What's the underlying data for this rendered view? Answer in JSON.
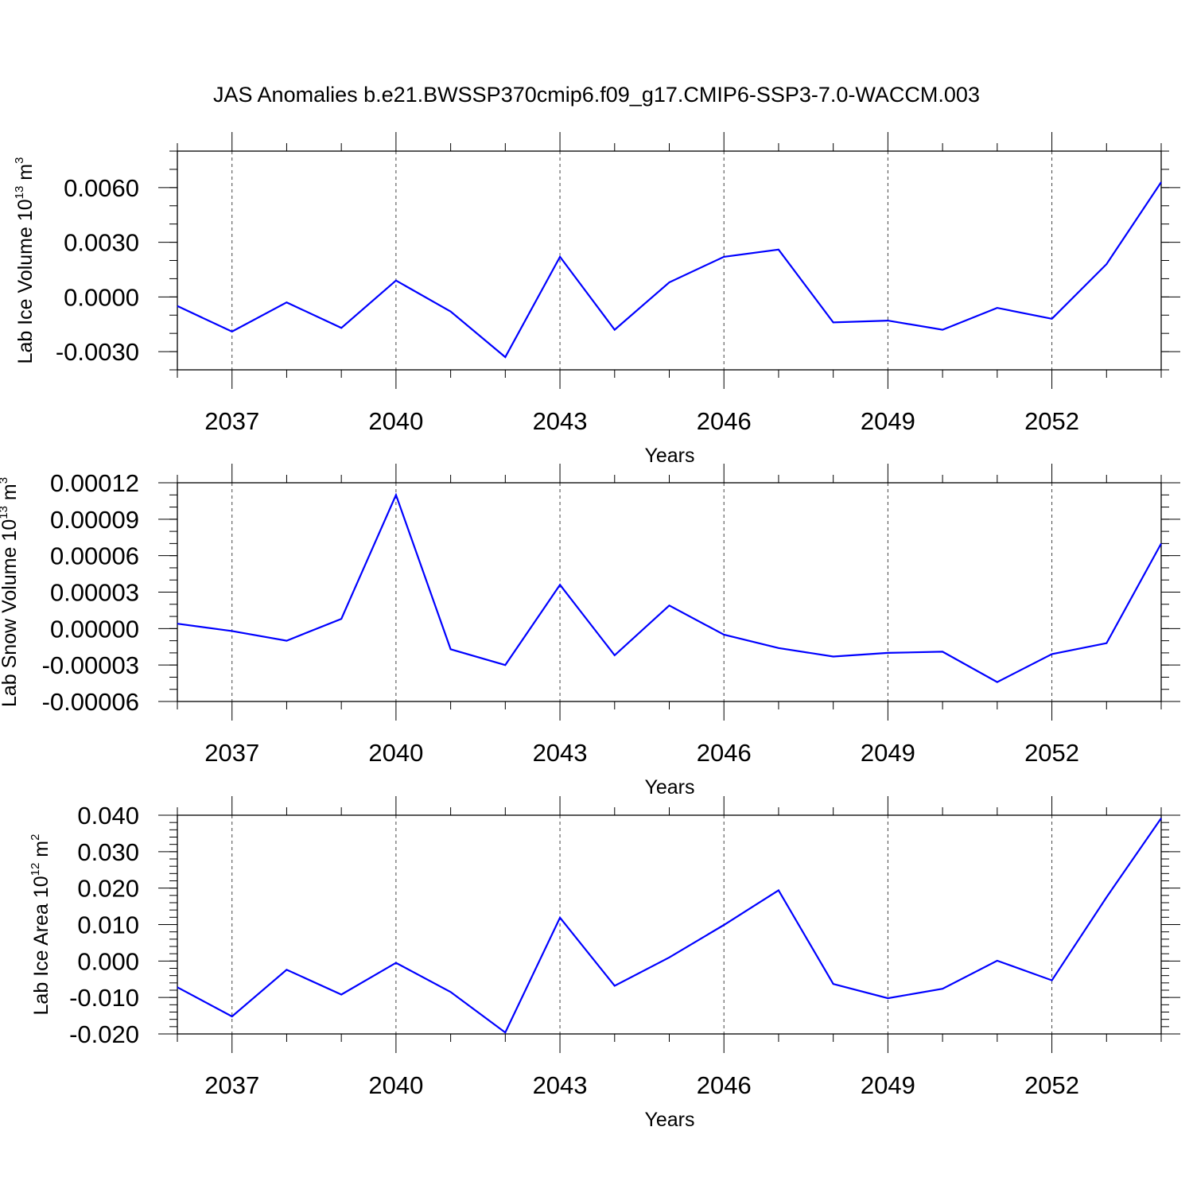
{
  "title": "JAS Anomalies b.e21.BWSSP370cmip6.f09_g17.CMIP6-SSP3-7.0-WACCM.003",
  "chart_data": [
    {
      "type": "line",
      "ylabel": "Lab Ice Volume 10",
      "ylabel_exp": "13",
      "ylabel_unit": " m",
      "ylabel_unit_exp": "3",
      "xlabel": "Years",
      "xlim": [
        2036,
        2054
      ],
      "ylim": [
        -0.004,
        0.008
      ],
      "x_ticks": [
        "2037",
        "2040",
        "2043",
        "2046",
        "2049",
        "2052"
      ],
      "y_ticks": [
        "0.0060",
        "0.0030",
        "0.0000",
        "-0.0030"
      ],
      "y_tick_values": [
        0.006,
        0.003,
        0.0,
        -0.003
      ],
      "y_minor_step": 0.001,
      "series": [
        {
          "color": "#0000ff",
          "x": [
            2036,
            2037,
            2038,
            2039,
            2040,
            2041,
            2042,
            2043,
            2044,
            2045,
            2046,
            2047,
            2048,
            2049,
            2050,
            2051,
            2052,
            2053,
            2054
          ],
          "values": [
            -0.0005,
            -0.0019,
            -0.0003,
            -0.0017,
            0.0009,
            -0.0008,
            -0.0033,
            0.0022,
            -0.0018,
            0.0008,
            0.0022,
            0.0026,
            -0.0014,
            -0.0013,
            -0.0018,
            -0.0006,
            -0.0012,
            0.0018,
            0.0063
          ]
        }
      ]
    },
    {
      "type": "line",
      "ylabel": "Lab Snow Volume 10",
      "ylabel_exp": "13",
      "ylabel_unit": " m",
      "ylabel_unit_exp": "3",
      "xlabel": "Years",
      "xlim": [
        2036,
        2054
      ],
      "ylim": [
        -6e-05,
        0.00012
      ],
      "x_ticks": [
        "2037",
        "2040",
        "2043",
        "2046",
        "2049",
        "2052"
      ],
      "y_ticks": [
        "0.00012",
        "0.00009",
        "0.00006",
        "0.00003",
        "0.00000",
        "-0.00003",
        "-0.00006"
      ],
      "y_tick_values": [
        0.00012,
        9e-05,
        6e-05,
        3e-05,
        0.0,
        -3e-05,
        -6e-05
      ],
      "y_minor_step": 1e-05,
      "series": [
        {
          "color": "#0000ff",
          "x": [
            2036,
            2037,
            2038,
            2039,
            2040,
            2041,
            2042,
            2043,
            2044,
            2045,
            2046,
            2047,
            2048,
            2049,
            2050,
            2051,
            2052,
            2053,
            2054
          ],
          "values": [
            4e-06,
            -2e-06,
            -1e-05,
            8e-06,
            0.00011,
            -1.7e-05,
            -3e-05,
            3.6e-05,
            -2.2e-05,
            1.9e-05,
            -5e-06,
            -1.6e-05,
            -2.3e-05,
            -2e-05,
            -1.9e-05,
            -4.4e-05,
            -2.1e-05,
            -1.2e-05,
            7e-05
          ]
        }
      ]
    },
    {
      "type": "line",
      "ylabel": "Lab Ice Area 10",
      "ylabel_exp": "12",
      "ylabel_unit": " m",
      "ylabel_unit_exp": "2",
      "xlabel": "Years",
      "xlim": [
        2036,
        2054
      ],
      "ylim": [
        -0.02,
        0.04
      ],
      "x_ticks": [
        "2037",
        "2040",
        "2043",
        "2046",
        "2049",
        "2052"
      ],
      "y_ticks": [
        "0.040",
        "0.030",
        "0.020",
        "0.010",
        "0.000",
        "-0.010",
        "-0.020"
      ],
      "y_tick_values": [
        0.04,
        0.03,
        0.02,
        0.01,
        0.0,
        -0.01,
        -0.02
      ],
      "y_minor_step": 0.002,
      "series": [
        {
          "color": "#0000ff",
          "x": [
            2036,
            2037,
            2038,
            2039,
            2040,
            2041,
            2042,
            2043,
            2044,
            2045,
            2046,
            2047,
            2048,
            2049,
            2050,
            2051,
            2052,
            2053,
            2054
          ],
          "values": [
            -0.0072,
            -0.0152,
            -0.0024,
            -0.0092,
            -0.0005,
            -0.0085,
            -0.0196,
            0.0119,
            -0.0068,
            0.001,
            0.0099,
            0.0194,
            -0.0063,
            -0.0102,
            -0.0076,
            0.0001,
            -0.0053,
            0.0175,
            0.0392
          ]
        }
      ]
    }
  ]
}
